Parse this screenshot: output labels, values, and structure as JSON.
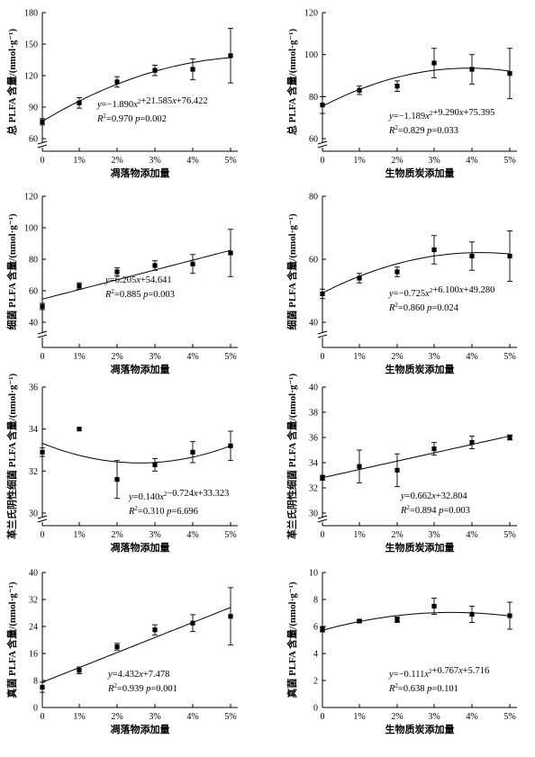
{
  "chart_data": [
    {
      "type": "scatter",
      "ylabel": "总 PLFA 含量/(nmol·g⁻¹)",
      "xlabel": "凋落物添加量",
      "categories": [
        "0",
        "1%",
        "2%",
        "3%",
        "4%",
        "5%"
      ],
      "x": [
        0,
        1,
        2,
        3,
        4,
        5
      ],
      "values": [
        76,
        94,
        114,
        125,
        126,
        139
      ],
      "errors": [
        3,
        5,
        5,
        5,
        10,
        26
      ],
      "ylim": [
        60,
        180
      ],
      "yticks": [
        "60",
        "90",
        "120",
        "150",
        "180"
      ],
      "fit": [
        76.422,
        21.585,
        -1.89
      ],
      "eq1_main": "y=−1.890x",
      "eq1_rest": "+21.585x+76.422",
      "eq2": "=0.970  p=0.002"
    },
    {
      "type": "scatter",
      "ylabel": "总 PLFA 含量/(nmol·g⁻¹)",
      "xlabel": "生物质炭添加量",
      "categories": [
        "0",
        "1%",
        "2%",
        "3%",
        "4%",
        "5%"
      ],
      "x": [
        0,
        1,
        2,
        3,
        4,
        5
      ],
      "values": [
        76,
        83,
        85,
        96,
        93,
        91
      ],
      "errors": [
        4,
        2,
        2.5,
        7,
        7,
        12
      ],
      "ylim": [
        60,
        120
      ],
      "yticks": [
        "60",
        "80",
        "100",
        "120"
      ],
      "fit": [
        75.395,
        9.29,
        -1.189
      ],
      "eq1_main": "y=−1.189x",
      "eq1_rest": "+9.290x+75.395",
      "eq2": "=0.829  p=0.033"
    },
    {
      "type": "scatter",
      "ylabel": "细菌 PLFA 含量/(nmol·g⁻¹)",
      "xlabel": "凋落物添加量",
      "categories": [
        "0",
        "1%",
        "2%",
        "3%",
        "4%",
        "5%"
      ],
      "x": [
        0,
        1,
        2,
        3,
        4,
        5
      ],
      "values": [
        50,
        63,
        72,
        76,
        77,
        84
      ],
      "errors": [
        2,
        2,
        2.5,
        3,
        6,
        15
      ],
      "ylim": [
        40,
        120
      ],
      "yticks": [
        "40",
        "60",
        "80",
        "100",
        "120"
      ],
      "fit": [
        54.641,
        6.205,
        0
      ],
      "eq1_main": "y=6.205x+54.641",
      "eq1_rest": "",
      "eq2": "=0.885  p=0.003"
    },
    {
      "type": "scatter",
      "ylabel": "细菌 PLFA 含量/(nmol·g⁻¹)",
      "xlabel": "生物质炭添加量",
      "categories": [
        "0",
        "1%",
        "2%",
        "3%",
        "4%",
        "5%"
      ],
      "x": [
        0,
        1,
        2,
        3,
        4,
        5
      ],
      "values": [
        49,
        54,
        56,
        63,
        61,
        61
      ],
      "errors": [
        1.5,
        1.5,
        1.5,
        4.5,
        4.5,
        8
      ],
      "ylim": [
        40,
        80
      ],
      "yticks": [
        "40",
        "60",
        "80"
      ],
      "fit": [
        49.28,
        6.1,
        -0.725
      ],
      "eq1_main": "y=−0.725x",
      "eq1_rest": "+6.100x+49.280",
      "eq2": "=0.860  p=0.024"
    },
    {
      "type": "scatter",
      "ylabel": "革兰氏阴性细菌 PLFA 含量/(nmol·g⁻¹)",
      "xlabel": "凋落物添加量",
      "categories": [
        "0",
        "1%",
        "2%",
        "3%",
        "4%",
        "5%"
      ],
      "x": [
        0,
        1,
        2,
        3,
        4,
        5
      ],
      "values": [
        32.9,
        34.0,
        31.6,
        32.3,
        32.9,
        33.2
      ],
      "errors": [
        0.2,
        0,
        0.9,
        0.3,
        0.5,
        0.7
      ],
      "ylim": [
        30,
        36
      ],
      "yticks": [
        "30",
        "32",
        "34",
        "36"
      ],
      "fit": [
        33.323,
        -0.724,
        0.14
      ],
      "eq1_main": "y=0.140x",
      "eq1_rest": "−0.724x+33.323",
      "eq2": "=0.310  p=6.696"
    },
    {
      "type": "scatter",
      "ylabel": "革兰氏阴性细菌 PLFA 含量/(nmol·g⁻¹)",
      "xlabel": "生物质炭添加量",
      "categories": [
        "0",
        "1%",
        "2%",
        "3%",
        "4%",
        "5%"
      ],
      "x": [
        0,
        1,
        2,
        3,
        4,
        5
      ],
      "values": [
        32.8,
        33.7,
        33.4,
        35.1,
        35.6,
        36.0
      ],
      "errors": [
        0.2,
        1.3,
        1.3,
        0.5,
        0.5,
        0.2
      ],
      "ylim": [
        30,
        40
      ],
      "yticks": [
        "30",
        "32",
        "34",
        "36",
        "38",
        "40"
      ],
      "fit": [
        32.804,
        0.662,
        0
      ],
      "eq1_main": "y=0.662x+32.804",
      "eq1_rest": "",
      "eq2": "=0.894  p=0.003"
    },
    {
      "type": "scatter",
      "ylabel": "真菌 PLFA 含量/(nmol·g⁻¹)",
      "xlabel": "凋落物添加量",
      "categories": [
        "0",
        "1%",
        "2%",
        "3%",
        "4%",
        "5%"
      ],
      "x": [
        0,
        1,
        2,
        3,
        4,
        5
      ],
      "values": [
        6,
        11,
        18,
        23,
        25,
        27
      ],
      "errors": [
        1.5,
        1,
        1,
        1.5,
        2.5,
        8.5
      ],
      "ylim": [
        0,
        40
      ],
      "yticks": [
        "0",
        "8",
        "16",
        "24",
        "32",
        "40"
      ],
      "fit": [
        7.478,
        4.432,
        0
      ],
      "eq1_main": "y=4.432x+7.478",
      "eq1_rest": "",
      "eq2": "=0.939  p=0.001"
    },
    {
      "type": "scatter",
      "ylabel": "真菌 PLFA 含量/(nmol·g⁻¹)",
      "xlabel": "生物质炭添加量",
      "categories": [
        "0",
        "1%",
        "2%",
        "3%",
        "4%",
        "5%"
      ],
      "x": [
        0,
        1,
        2,
        3,
        4,
        5
      ],
      "values": [
        5.8,
        6.4,
        6.5,
        7.5,
        6.9,
        6.8
      ],
      "errors": [
        0.2,
        0.1,
        0.2,
        0.6,
        0.6,
        1.0
      ],
      "ylim": [
        0,
        10
      ],
      "yticks": [
        "0",
        "2",
        "4",
        "6",
        "8",
        "10"
      ],
      "fit": [
        5.716,
        0.767,
        -0.111
      ],
      "eq1_main": "y=−0.111x",
      "eq1_rest": "+0.767x+5.716",
      "eq2": "=0.638  p=0.101"
    }
  ]
}
